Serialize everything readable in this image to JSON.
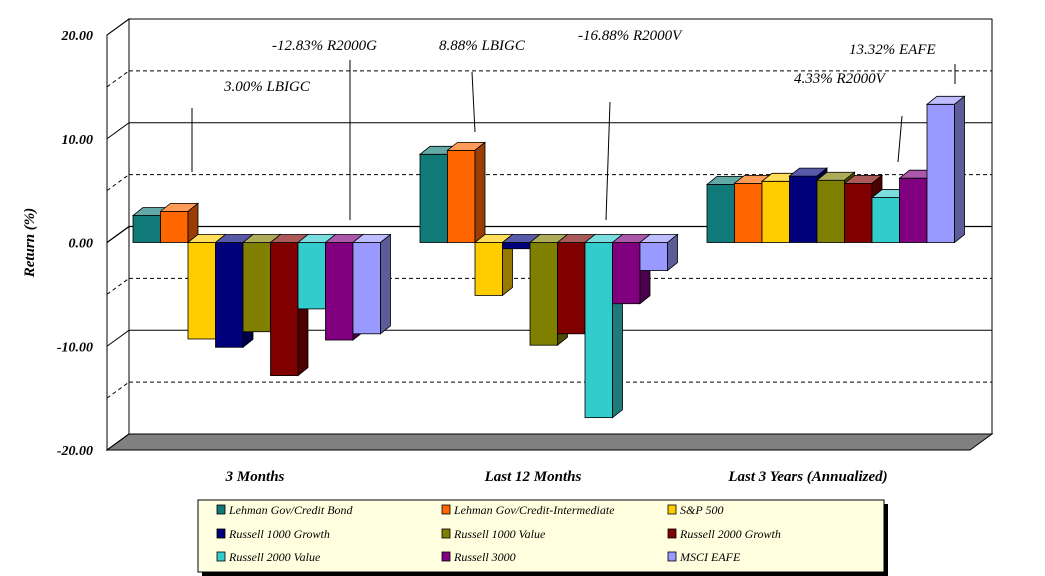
{
  "chart_data": {
    "type": "bar",
    "ylabel": "Return (%)",
    "ylim": [
      -20,
      20
    ],
    "yticks": [
      "20.00",
      "10.00",
      "0.00",
      "-10.00",
      "-20.00"
    ],
    "grid": true,
    "legend_position": "bottom",
    "categories": [
      "3 Months",
      "Last 12 Months",
      "Last 3 Years (Annualized)"
    ],
    "series": [
      {
        "name": "Lehman Gov/Credit Bond",
        "color": "#0f7a78",
        "values": [
          2.6,
          8.5,
          5.6
        ]
      },
      {
        "name": "Lehman Gov/Credit-Intermediate",
        "color": "#ff6600",
        "values": [
          3.0,
          8.88,
          5.7
        ]
      },
      {
        "name": "S&P 500",
        "color": "#ffcc00",
        "values": [
          -9.3,
          -5.1,
          5.9
        ]
      },
      {
        "name": "Russell 1000 Growth",
        "color": "#00007a",
        "values": [
          -10.1,
          -0.6,
          6.4
        ]
      },
      {
        "name": "Russell 1000 Value",
        "color": "#7f7f00",
        "values": [
          -8.6,
          -9.9,
          6.0
        ]
      },
      {
        "name": "Russell 2000 Growth",
        "color": "#800000",
        "values": [
          -12.83,
          -8.8,
          5.7
        ]
      },
      {
        "name": "Russell 2000 Value",
        "color": "#33cccc",
        "values": [
          -6.4,
          -16.88,
          4.33
        ]
      },
      {
        "name": "Russell 3000",
        "color": "#800080",
        "values": [
          -9.4,
          -5.9,
          6.2
        ]
      },
      {
        "name": "MSCI EAFE",
        "color": "#9999ff",
        "values": [
          -8.8,
          -2.7,
          13.32
        ]
      }
    ],
    "annotations": [
      {
        "text": "-12.83% R2000G",
        "category": 0,
        "series": 5
      },
      {
        "text": "3.00% LBIGC",
        "category": 0,
        "series": 1
      },
      {
        "text": "8.88% LBIGC",
        "category": 1,
        "series": 1
      },
      {
        "text": "-16.88% R2000V",
        "category": 1,
        "series": 6
      },
      {
        "text": "13.32% EAFE",
        "category": 2,
        "series": 8
      },
      {
        "text": "4.33% R2000V",
        "category": 2,
        "series": 6
      }
    ]
  }
}
